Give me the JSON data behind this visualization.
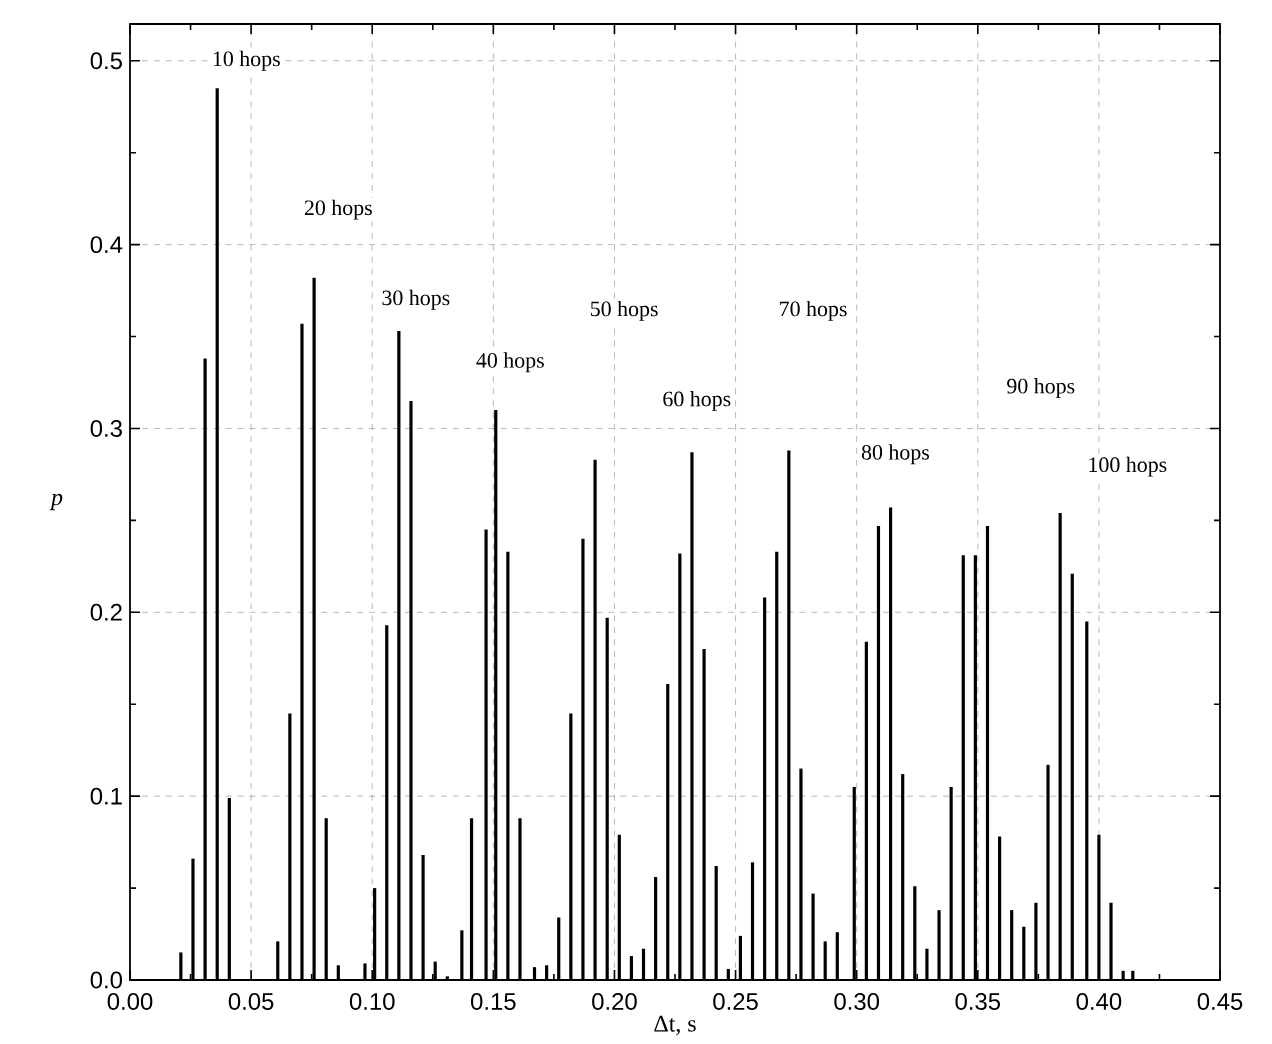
{
  "chart_data": {
    "type": "bar",
    "xlabel": "Δt, s",
    "ylabel": "p",
    "color": "#000000",
    "x": [
      0.021,
      0.026,
      0.031,
      0.036,
      0.041,
      0.061,
      0.066,
      0.071,
      0.076,
      0.081,
      0.086,
      0.097,
      0.101,
      0.106,
      0.111,
      0.116,
      0.121,
      0.126,
      0.131,
      0.137,
      0.141,
      0.147,
      0.151,
      0.156,
      0.161,
      0.167,
      0.172,
      0.177,
      0.182,
      0.187,
      0.192,
      0.197,
      0.202,
      0.207,
      0.212,
      0.217,
      0.222,
      0.227,
      0.232,
      0.237,
      0.242,
      0.247,
      0.252,
      0.257,
      0.262,
      0.267,
      0.272,
      0.277,
      0.282,
      0.287,
      0.292,
      0.299,
      0.304,
      0.309,
      0.314,
      0.319,
      0.324,
      0.329,
      0.334,
      0.339,
      0.344,
      0.349,
      0.354,
      0.359,
      0.364,
      0.369,
      0.374,
      0.379,
      0.384,
      0.389,
      0.395,
      0.4,
      0.405,
      0.41,
      0.414
    ],
    "values": [
      0.015,
      0.066,
      0.338,
      0.485,
      0.099,
      0.021,
      0.145,
      0.357,
      0.382,
      0.088,
      0.008,
      0.009,
      0.05,
      0.193,
      0.353,
      0.315,
      0.068,
      0.01,
      0.002,
      0.027,
      0.088,
      0.245,
      0.31,
      0.233,
      0.088,
      0.007,
      0.008,
      0.034,
      0.145,
      0.24,
      0.283,
      0.197,
      0.079,
      0.013,
      0.017,
      0.056,
      0.161,
      0.232,
      0.287,
      0.18,
      0.062,
      0.006,
      0.024,
      0.064,
      0.208,
      0.233,
      0.288,
      0.115,
      0.047,
      0.021,
      0.026,
      0.105,
      0.184,
      0.247,
      0.257,
      0.112,
      0.051,
      0.017,
      0.038,
      0.105,
      0.231,
      0.231,
      0.247,
      0.078,
      0.038,
      0.029,
      0.042,
      0.117,
      0.254,
      0.221,
      0.195,
      0.079,
      0.042,
      0.005,
      0.005
    ],
    "xlim": [
      0,
      0.45
    ],
    "ylim": [
      0,
      0.52
    ],
    "xticks": [
      {
        "value": 0,
        "label": "0.00"
      },
      {
        "value": 0.05,
        "label": "0.05"
      },
      {
        "value": 0.1,
        "label": "0.10"
      },
      {
        "value": 0.15,
        "label": "0.15"
      },
      {
        "value": 0.2,
        "label": "0.20"
      },
      {
        "value": 0.25,
        "label": "0.25"
      },
      {
        "value": 0.3,
        "label": "0.30"
      },
      {
        "value": 0.35,
        "label": "0.35"
      },
      {
        "value": 0.4,
        "label": "0.40"
      },
      {
        "value": 0.45,
        "label": "0.45"
      }
    ],
    "yticks": [
      {
        "value": 0,
        "label": "0.0"
      },
      {
        "value": 0.1,
        "label": "0.1"
      },
      {
        "value": 0.2,
        "label": "0.2"
      },
      {
        "value": 0.3,
        "label": "0.3"
      },
      {
        "value": 0.4,
        "label": "0.4"
      },
      {
        "value": 0.5,
        "label": "0.5"
      }
    ],
    "grid": true,
    "annotations": [
      {
        "text": "10 hops",
        "x": 0.048,
        "y": 0.5
      },
      {
        "text": "20 hops",
        "x": 0.086,
        "y": 0.419
      },
      {
        "text": "30 hops",
        "x": 0.118,
        "y": 0.37
      },
      {
        "text": "40 hops",
        "x": 0.157,
        "y": 0.336
      },
      {
        "text": "50 hops",
        "x": 0.204,
        "y": 0.364
      },
      {
        "text": "60 hops",
        "x": 0.234,
        "y": 0.315
      },
      {
        "text": "70 hops",
        "x": 0.282,
        "y": 0.364
      },
      {
        "text": "80 hops",
        "x": 0.316,
        "y": 0.286
      },
      {
        "text": "90 hops",
        "x": 0.376,
        "y": 0.322
      },
      "100 hops"
    ]
  }
}
